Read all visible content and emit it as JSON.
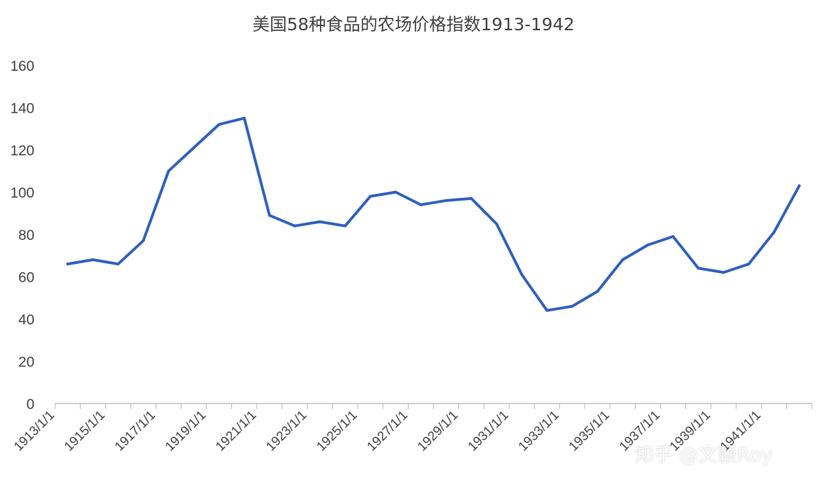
{
  "chart_data": {
    "type": "line",
    "title": "美国58种食品的农场价格指数1913-1942",
    "xlabel": "",
    "ylabel": "",
    "ylim": [
      0,
      160
    ],
    "yticks": [
      0,
      20,
      40,
      60,
      80,
      100,
      120,
      140,
      160
    ],
    "x_tick_labels": [
      "1913/1/1",
      "1915/1/1",
      "1917/1/1",
      "1919/1/1",
      "1921/1/1",
      "1923/1/1",
      "1925/1/1",
      "1927/1/1",
      "1929/1/1",
      "1931/1/1",
      "1933/1/1",
      "1935/1/1",
      "1937/1/1",
      "1939/1/1",
      "1941/1/1"
    ],
    "grid": false,
    "color": "#2e5fc0",
    "series": [
      {
        "x": [
          "1913/1/1",
          "1914/1/1",
          "1915/1/1",
          "1916/1/1",
          "1917/1/1",
          "1918/1/1",
          "1919/1/1",
          "1920/1/1",
          "1921/1/1",
          "1922/1/1",
          "1923/1/1",
          "1924/1/1",
          "1925/1/1",
          "1926/1/1",
          "1927/1/1",
          "1928/1/1",
          "1929/1/1",
          "1930/1/1",
          "1931/1/1",
          "1932/1/1",
          "1933/1/1",
          "1934/1/1",
          "1935/1/1",
          "1936/1/1",
          "1937/1/1",
          "1938/1/1",
          "1939/1/1",
          "1940/1/1",
          "1941/1/1",
          "1942/1/1"
        ],
        "values": [
          66,
          68,
          66,
          77,
          110,
          121,
          132,
          135,
          89,
          84,
          86,
          84,
          98,
          100,
          94,
          96,
          97,
          85,
          61,
          44,
          46,
          53,
          68,
          75,
          79,
          64,
          62,
          66,
          81,
          103
        ]
      }
    ]
  },
  "watermark": "知乎 @文颖Roy"
}
